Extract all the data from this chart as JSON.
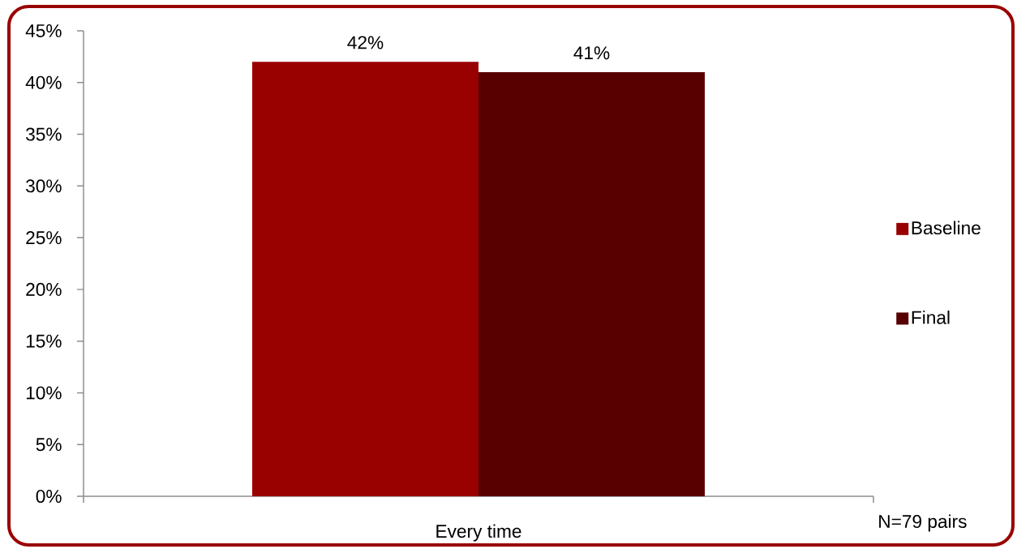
{
  "chart_data": {
    "type": "bar",
    "categories": [
      "Every time"
    ],
    "series": [
      {
        "name": "Baseline",
        "color": "#990000",
        "values": [
          42
        ],
        "value_labels": [
          "42%"
        ]
      },
      {
        "name": "Final",
        "color": "#580000",
        "values": [
          41
        ],
        "value_labels": [
          "41%"
        ]
      }
    ],
    "ylim": [
      0,
      45
    ],
    "yticks": [
      {
        "value": 0,
        "label": "0%"
      },
      {
        "value": 5,
        "label": "5%"
      },
      {
        "value": 10,
        "label": "10%"
      },
      {
        "value": 15,
        "label": "15%"
      },
      {
        "value": 20,
        "label": "20%"
      },
      {
        "value": 25,
        "label": "25%"
      },
      {
        "value": 30,
        "label": "30%"
      },
      {
        "value": 35,
        "label": "35%"
      },
      {
        "value": 40,
        "label": "40%"
      },
      {
        "value": 45,
        "label": "45%"
      }
    ],
    "legend": "right",
    "annotations": [
      "N=79 pairs"
    ]
  }
}
